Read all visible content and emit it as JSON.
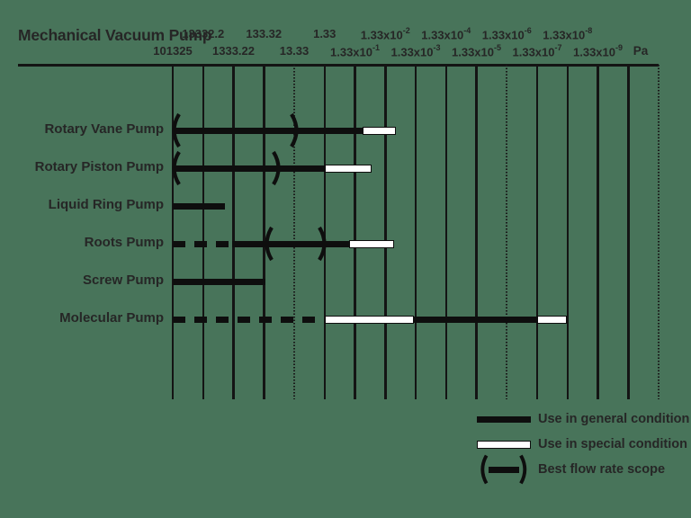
{
  "title": "Mechanical Vacuum Pump",
  "chart_data": {
    "type": "bar",
    "subtype": "horizontal pressure-range (gantt-style) chart, log decade axis",
    "x_axis": {
      "unit": "Pa",
      "direction": "pressure decreases left to right",
      "ticks": [
        {
          "label": "101325",
          "row": "bottom",
          "style": "solid"
        },
        {
          "label": "13332.2",
          "row": "top",
          "style": "solid"
        },
        {
          "label": "1333.22",
          "row": "bottom",
          "style": "solid"
        },
        {
          "label": "133.32",
          "row": "top",
          "style": "solid"
        },
        {
          "label": "13.33",
          "row": "bottom",
          "style": "dotted"
        },
        {
          "label": "1.33",
          "row": "top",
          "style": "solid"
        },
        {
          "label": "1.33x10",
          "sup": "-1",
          "row": "bottom",
          "style": "solid"
        },
        {
          "label": "1.33x10",
          "sup": "-2",
          "row": "top",
          "style": "solid"
        },
        {
          "label": "1.33x10",
          "sup": "-3",
          "row": "bottom",
          "style": "solid"
        },
        {
          "label": "1.33x10",
          "sup": "-4",
          "row": "top",
          "style": "solid"
        },
        {
          "label": "1.33x10",
          "sup": "-5",
          "row": "bottom",
          "style": "solid"
        },
        {
          "label": "1.33x10",
          "sup": "-6",
          "row": "top",
          "style": "dotted"
        },
        {
          "label": "1.33x10",
          "sup": "-7",
          "row": "bottom",
          "style": "solid"
        },
        {
          "label": "1.33x10",
          "sup": "-8",
          "row": "top",
          "style": "solid"
        },
        {
          "label": "1.33x10",
          "sup": "-9",
          "row": "bottom",
          "style": "solid"
        },
        {
          "label": "",
          "style": "solid"
        },
        {
          "label": "",
          "style": "dotted"
        }
      ]
    },
    "units_note": "segment from/to are in tick-column units (0 = 101325 Pa line, 1 column = 1 decade)",
    "pumps": [
      {
        "name": "Rotary Vane Pump",
        "segments": [
          {
            "kind": "general",
            "from": 0,
            "to": 6.25
          },
          {
            "kind": "special",
            "from": 6.25,
            "to": 7.35
          }
        ],
        "best_flow": {
          "from": 0.05,
          "to": 4.05
        }
      },
      {
        "name": "Rotary Piston Pump",
        "segments": [
          {
            "kind": "general",
            "from": 0,
            "to": 5.0
          },
          {
            "kind": "special",
            "from": 5.0,
            "to": 6.55
          }
        ],
        "best_flow": {
          "from": 0.05,
          "to": 3.47
        }
      },
      {
        "name": "Liquid Ring Pump",
        "segments": [
          {
            "kind": "general",
            "from": 0,
            "to": 1.72
          }
        ]
      },
      {
        "name": "Roots Pump",
        "segments": [
          {
            "kind": "dashed",
            "from": 0,
            "to": 1.96
          },
          {
            "kind": "general",
            "from": 1.96,
            "to": 5.8
          },
          {
            "kind": "special",
            "from": 5.8,
            "to": 7.29
          }
        ],
        "best_flow": {
          "from": 3.11,
          "to": 4.98
        }
      },
      {
        "name": "Screw Pump",
        "segments": [
          {
            "kind": "general",
            "from": 0,
            "to": 3.05
          }
        ]
      },
      {
        "name": "Molecular Pump",
        "segments": [
          {
            "kind": "dashed",
            "from": 0,
            "to": 4.92
          },
          {
            "kind": "special",
            "from": 5.0,
            "to": 7.94
          },
          {
            "kind": "general",
            "from": 7.94,
            "to": 12.0
          },
          {
            "kind": "special",
            "from": 12.0,
            "to": 12.98
          }
        ]
      }
    ],
    "legend": {
      "items": [
        {
          "swatch": "general",
          "label": "Use in general condition"
        },
        {
          "swatch": "special",
          "label": "Use in special condition"
        },
        {
          "swatch": "best-flow",
          "label": "Best flow rate scope"
        }
      ]
    },
    "colors": {
      "background": "#48745A",
      "ink": "#141414",
      "special_fill": "#ffffff"
    }
  }
}
